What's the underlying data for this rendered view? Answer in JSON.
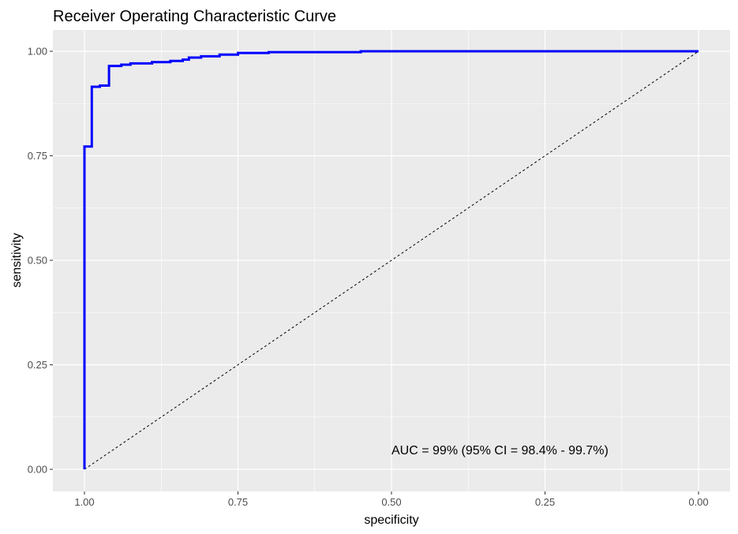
{
  "chart_data": {
    "type": "line",
    "title": "Receiver Operating Characteristic Curve",
    "xlabel": "specificity",
    "ylabel": "sensitivity",
    "x_reversed": true,
    "xlim": [
      1.0,
      0.0
    ],
    "ylim": [
      0.0,
      1.0
    ],
    "x_ticks": [
      1.0,
      0.75,
      0.5,
      0.25,
      0.0
    ],
    "x_tick_labels": [
      "1.00",
      "0.75",
      "0.50",
      "0.25",
      "0.00"
    ],
    "y_ticks": [
      0.0,
      0.25,
      0.5,
      0.75,
      1.0
    ],
    "y_tick_labels": [
      "0.00",
      "0.25",
      "0.50",
      "0.75",
      "1.00"
    ],
    "grid": true,
    "background": "#ebebeb",
    "series": [
      {
        "color": "#0000ff",
        "points": [
          [
            1.0,
            0.0
          ],
          [
            1.0,
            0.772
          ],
          [
            0.988,
            0.772
          ],
          [
            0.988,
            0.915
          ],
          [
            0.975,
            0.915
          ],
          [
            0.975,
            0.918
          ],
          [
            0.96,
            0.918
          ],
          [
            0.96,
            0.923
          ],
          [
            0.96,
            0.923
          ],
          [
            0.96,
            0.965
          ],
          [
            0.94,
            0.965
          ],
          [
            0.94,
            0.968
          ],
          [
            0.925,
            0.968
          ],
          [
            0.925,
            0.971
          ],
          [
            0.89,
            0.971
          ],
          [
            0.89,
            0.974
          ],
          [
            0.86,
            0.974
          ],
          [
            0.86,
            0.977
          ],
          [
            0.84,
            0.977
          ],
          [
            0.84,
            0.98
          ],
          [
            0.83,
            0.98
          ],
          [
            0.83,
            0.985
          ],
          [
            0.81,
            0.985
          ],
          [
            0.81,
            0.988
          ],
          [
            0.78,
            0.988
          ],
          [
            0.78,
            0.992
          ],
          [
            0.75,
            0.992
          ],
          [
            0.75,
            0.996
          ],
          [
            0.7,
            0.996
          ],
          [
            0.7,
            0.998
          ],
          [
            0.55,
            0.998
          ],
          [
            0.55,
            1.0
          ],
          [
            0.0,
            1.0
          ]
        ]
      }
    ],
    "reference_line": {
      "from": [
        1.0,
        0.0
      ],
      "to": [
        0.0,
        1.0
      ],
      "style": "dashed",
      "color": "#000000"
    },
    "annotation": {
      "text": "AUC = 99% (95% CI = 98.4% - 99.7%)",
      "x": 0.5,
      "y": 0.045
    }
  }
}
